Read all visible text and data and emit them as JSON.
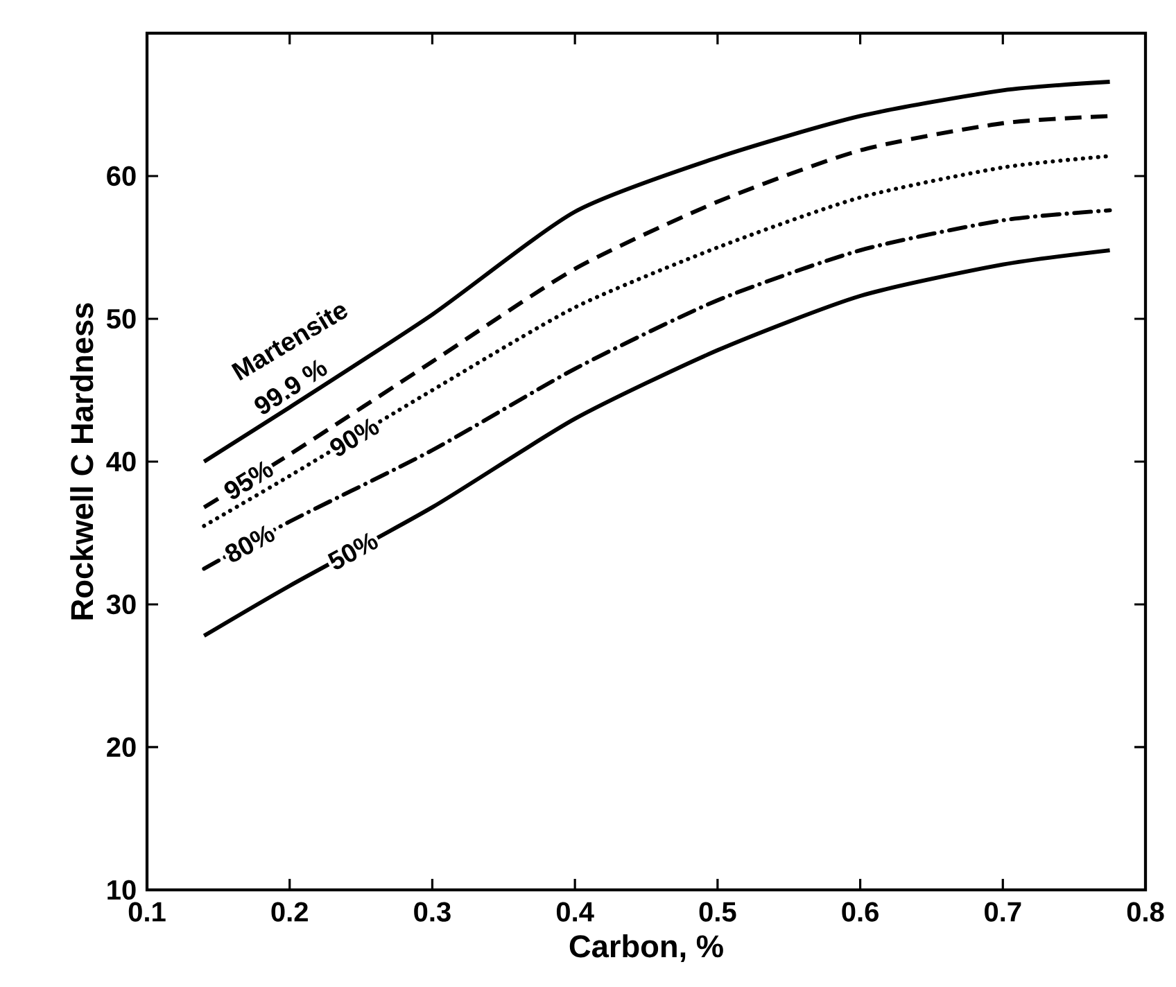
{
  "chart_data": {
    "type": "line",
    "xlabel": "Carbon, %",
    "ylabel": "Rockwell C Hardness",
    "annotations": [
      "Martensite"
    ],
    "xlim": [
      0.1,
      0.8
    ],
    "ylim": [
      10,
      70
    ],
    "xticks": [
      0.1,
      0.2,
      0.3,
      0.4,
      0.5,
      0.6,
      0.7,
      0.8
    ],
    "yticks": [
      10,
      20,
      30,
      40,
      50,
      60
    ],
    "grid": false,
    "marker": "none",
    "series": [
      {
        "name": "99.9 %",
        "color": "#000000",
        "line_style": "solid",
        "x": [
          0.14,
          0.2,
          0.3,
          0.4,
          0.5,
          0.6,
          0.7,
          0.775
        ],
        "values": [
          40,
          43.8,
          50.3,
          57.5,
          61.3,
          64.2,
          66,
          66.6
        ]
      },
      {
        "name": "95%",
        "color": "#000000",
        "line_style": "dashed",
        "x": [
          0.14,
          0.2,
          0.3,
          0.4,
          0.5,
          0.6,
          0.7,
          0.775
        ],
        "values": [
          36.8,
          40.5,
          47,
          53.5,
          58.2,
          61.8,
          63.7,
          64.2
        ]
      },
      {
        "name": "90%",
        "color": "#000000",
        "line_style": "dotted",
        "x": [
          0.14,
          0.2,
          0.3,
          0.4,
          0.5,
          0.6,
          0.7,
          0.775
        ],
        "values": [
          35.5,
          39,
          45,
          50.8,
          55,
          58.5,
          60.6,
          61.4
        ]
      },
      {
        "name": "80%",
        "color": "#000000",
        "line_style": "dashdot",
        "x": [
          0.14,
          0.2,
          0.3,
          0.4,
          0.5,
          0.6,
          0.7,
          0.775
        ],
        "values": [
          32.5,
          35.8,
          40.8,
          46.5,
          51.3,
          54.8,
          56.9,
          57.6
        ]
      },
      {
        "name": "50%",
        "color": "#000000",
        "line_style": "solid",
        "x": [
          0.14,
          0.2,
          0.3,
          0.4,
          0.5,
          0.6,
          0.7,
          0.775
        ],
        "values": [
          27.8,
          31.3,
          36.8,
          43,
          47.8,
          51.6,
          53.8,
          54.8
        ]
      }
    ]
  }
}
